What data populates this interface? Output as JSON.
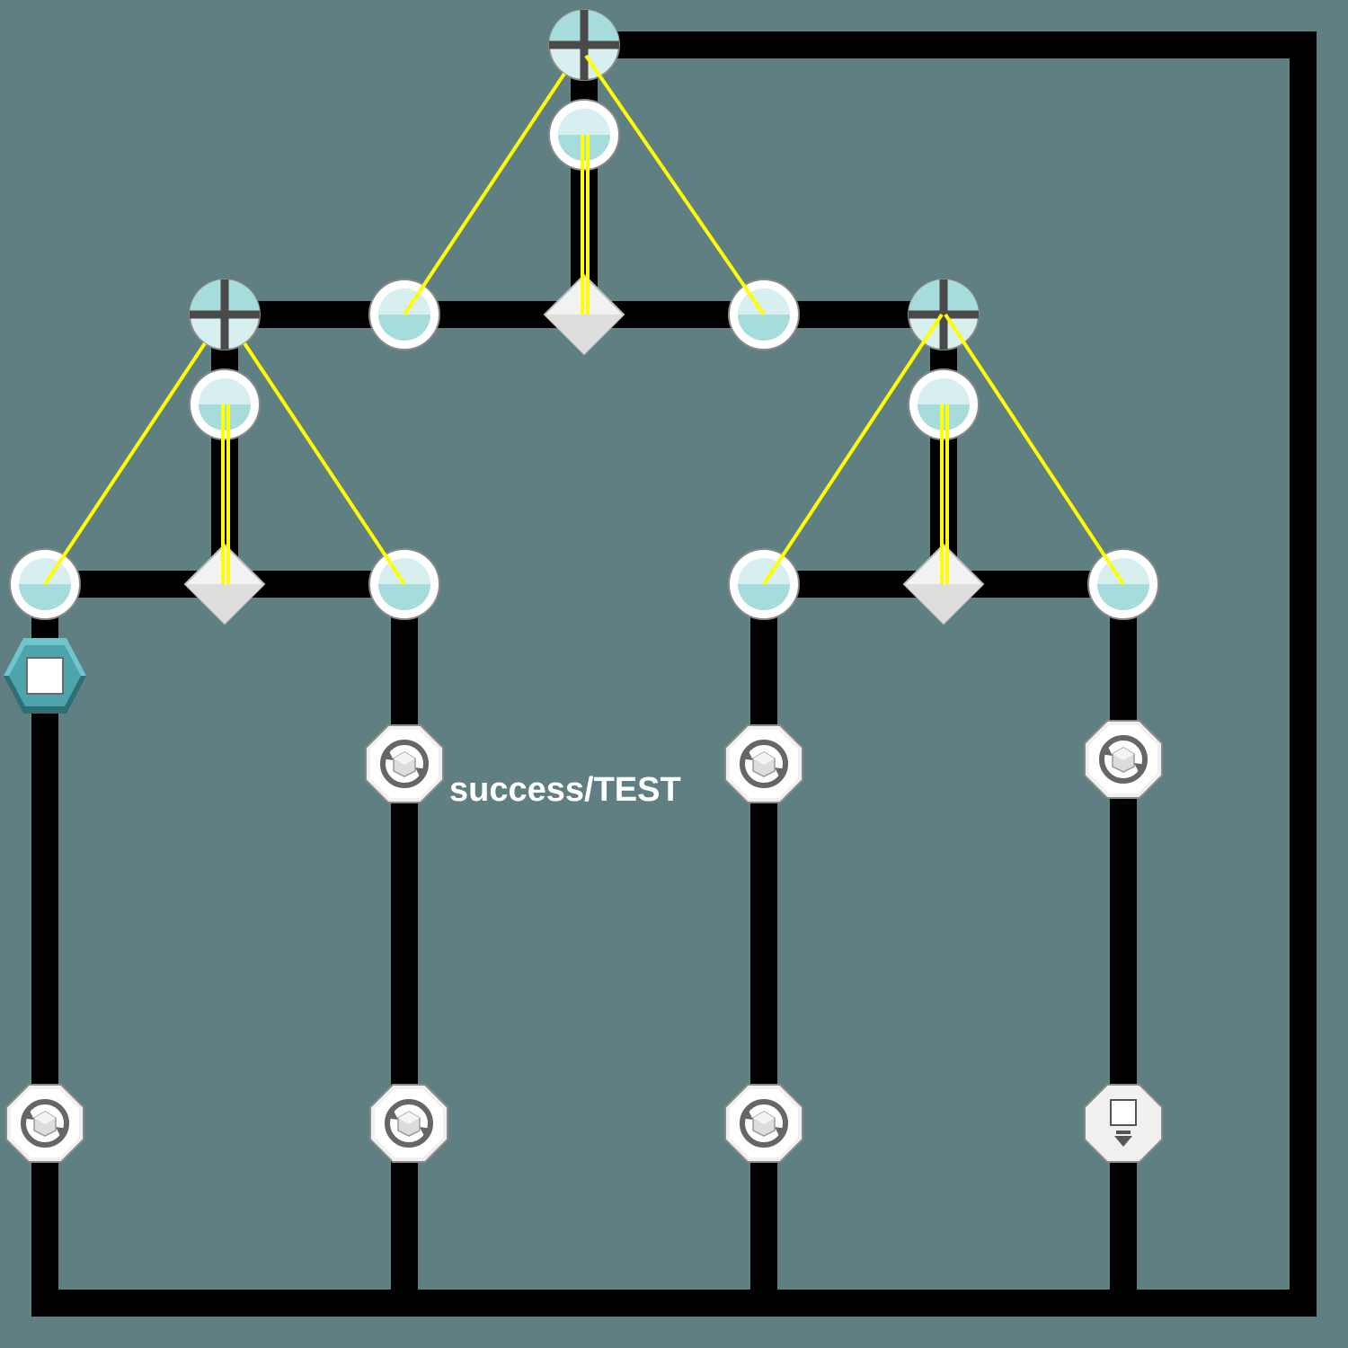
{
  "diagram": {
    "background_color": "#607f83",
    "wire_color": "#000000",
    "link_color": "#ffff00",
    "edge_label": "success/TEST",
    "node_colors": {
      "cyan": "#a7dcdd",
      "cyan_light": "#d8eff0",
      "ring": "#ffffff",
      "ring_stroke": "#8a8a8a",
      "diamond": "#ececec",
      "octagon": "#e6e6e6",
      "octagon_stroke": "#8a8a8a",
      "hexagon_top": "#6fc5cc",
      "hexagon_bottom": "#2e6f76"
    },
    "node_types": {
      "parallel-gateway-icon": "cross-in-circle",
      "port-icon": "half-filled-circle",
      "junction-icon": "diamond",
      "step-icon": "octagon-with-refresh-cube",
      "stop-icon": "hexagon-with-square",
      "output-icon": "octagon-with-square-and-arrow"
    }
  }
}
